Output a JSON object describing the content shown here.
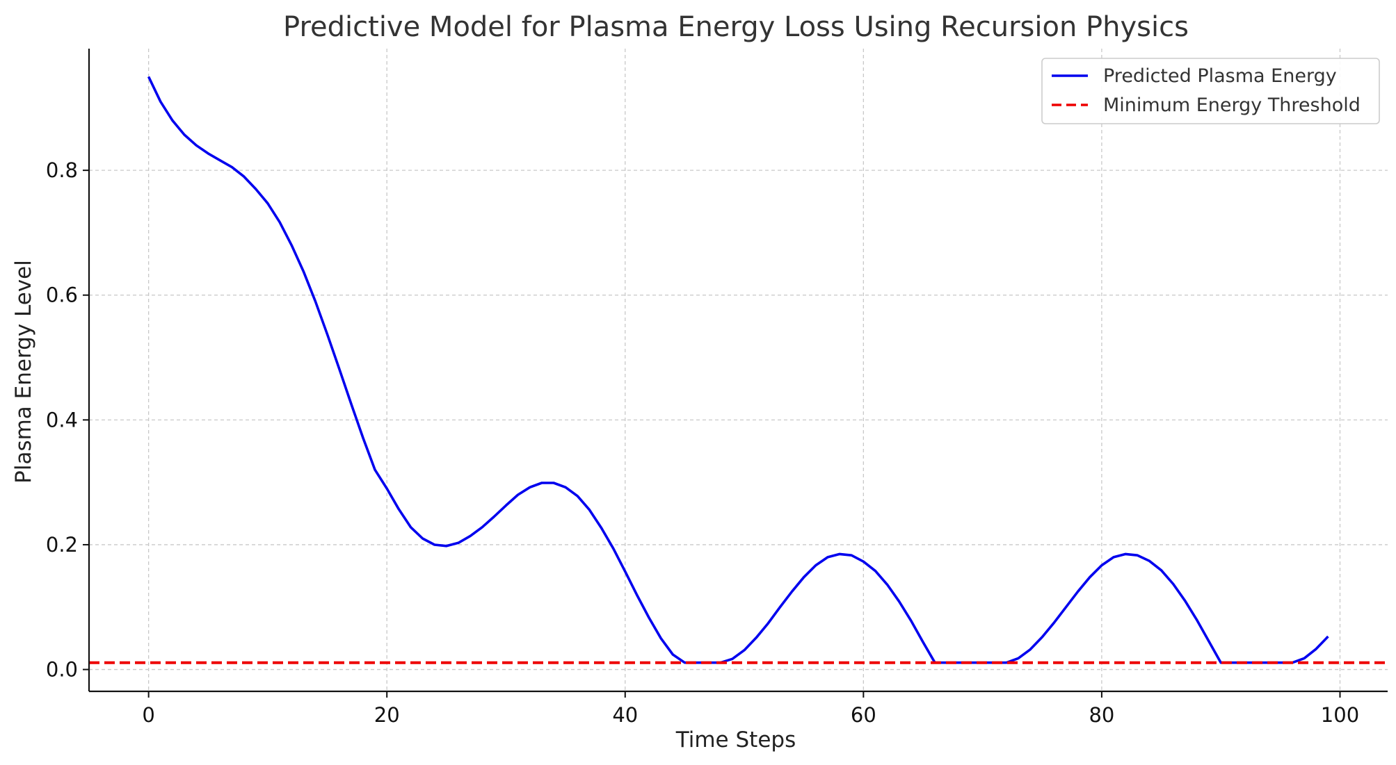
{
  "chart_data": {
    "type": "line",
    "title": "Predictive Model for Plasma Energy Loss Using Recursion Physics",
    "xlabel": "Time Steps",
    "ylabel": "Plasma Energy Level",
    "xlim": [
      -5,
      104
    ],
    "ylim": [
      -0.035,
      0.995
    ],
    "xticks": [
      0,
      20,
      40,
      60,
      80,
      100
    ],
    "xtick_labels": [
      "0",
      "20",
      "40",
      "60",
      "80",
      "100"
    ],
    "yticks": [
      0.0,
      0.2,
      0.4,
      0.6,
      0.8
    ],
    "ytick_labels": [
      "0.0",
      "0.2",
      "0.4",
      "0.6",
      "0.8"
    ],
    "grid": true,
    "legend_position": "top-right",
    "series": [
      {
        "name": "Predicted Plasma Energy",
        "color": "#0000ee",
        "style": "solid",
        "points": [
          [
            0,
            0.95
          ],
          [
            1,
            0.91
          ],
          [
            2,
            0.88
          ],
          [
            3,
            0.857
          ],
          [
            4,
            0.84
          ],
          [
            5,
            0.827
          ],
          [
            6,
            0.816
          ],
          [
            7,
            0.805
          ],
          [
            8,
            0.79
          ],
          [
            9,
            0.77
          ],
          [
            10,
            0.747
          ],
          [
            11,
            0.717
          ],
          [
            12,
            0.68
          ],
          [
            13,
            0.638
          ],
          [
            14,
            0.59
          ],
          [
            15,
            0.537
          ],
          [
            16,
            0.482
          ],
          [
            17,
            0.426
          ],
          [
            18,
            0.371
          ],
          [
            19,
            0.32
          ],
          [
            20,
            0.29
          ],
          [
            21,
            0.257
          ],
          [
            22,
            0.228
          ],
          [
            23,
            0.21
          ],
          [
            24,
            0.2
          ],
          [
            25,
            0.198
          ],
          [
            26,
            0.203
          ],
          [
            27,
            0.214
          ],
          [
            28,
            0.228
          ],
          [
            29,
            0.245
          ],
          [
            30,
            0.263
          ],
          [
            31,
            0.28
          ],
          [
            32,
            0.292
          ],
          [
            33,
            0.299
          ],
          [
            34,
            0.299
          ],
          [
            35,
            0.292
          ],
          [
            36,
            0.278
          ],
          [
            37,
            0.256
          ],
          [
            38,
            0.227
          ],
          [
            39,
            0.194
          ],
          [
            40,
            0.157
          ],
          [
            41,
            0.119
          ],
          [
            42,
            0.083
          ],
          [
            43,
            0.05
          ],
          [
            44,
            0.024
          ],
          [
            45,
            0.011
          ],
          [
            46,
            0.011
          ],
          [
            47,
            0.011
          ],
          [
            48,
            0.011
          ],
          [
            49,
            0.017
          ],
          [
            50,
            0.031
          ],
          [
            51,
            0.051
          ],
          [
            52,
            0.074
          ],
          [
            53,
            0.1
          ],
          [
            54,
            0.125
          ],
          [
            55,
            0.148
          ],
          [
            56,
            0.167
          ],
          [
            57,
            0.18
          ],
          [
            58,
            0.185
          ],
          [
            59,
            0.183
          ],
          [
            60,
            0.173
          ],
          [
            61,
            0.158
          ],
          [
            62,
            0.136
          ],
          [
            63,
            0.109
          ],
          [
            64,
            0.078
          ],
          [
            65,
            0.044
          ],
          [
            66,
            0.011
          ],
          [
            67,
            0.011
          ],
          [
            68,
            0.011
          ],
          [
            69,
            0.011
          ],
          [
            70,
            0.011
          ],
          [
            71,
            0.011
          ],
          [
            72,
            0.011
          ],
          [
            73,
            0.018
          ],
          [
            74,
            0.032
          ],
          [
            75,
            0.052
          ],
          [
            76,
            0.075
          ],
          [
            77,
            0.1
          ],
          [
            78,
            0.125
          ],
          [
            79,
            0.148
          ],
          [
            80,
            0.167
          ],
          [
            81,
            0.18
          ],
          [
            82,
            0.185
          ],
          [
            83,
            0.183
          ],
          [
            84,
            0.174
          ],
          [
            85,
            0.159
          ],
          [
            86,
            0.137
          ],
          [
            87,
            0.11
          ],
          [
            88,
            0.079
          ],
          [
            89,
            0.045
          ],
          [
            90,
            0.011
          ],
          [
            91,
            0.011
          ],
          [
            92,
            0.011
          ],
          [
            93,
            0.011
          ],
          [
            94,
            0.011
          ],
          [
            95,
            0.011
          ],
          [
            96,
            0.011
          ],
          [
            97,
            0.018
          ],
          [
            98,
            0.033
          ],
          [
            99,
            0.053
          ]
        ]
      },
      {
        "name": "Minimum Energy Threshold",
        "color": "#ee0000",
        "style": "dashed",
        "constant_y": 0.011
      }
    ]
  }
}
